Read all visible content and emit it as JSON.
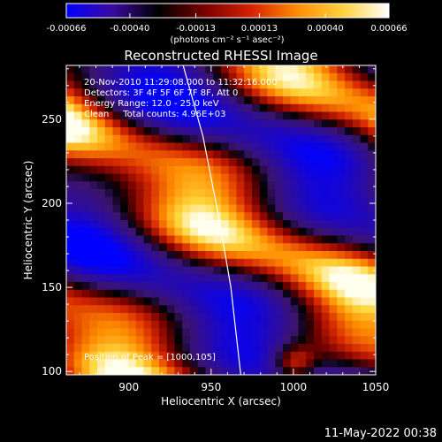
{
  "chart_data": {
    "type": "heatmap",
    "title": "Reconstructed RHESSI Image",
    "xlabel": "Heliocentric X (arcsec)",
    "ylabel": "Heliocentric Y (arcsec)",
    "xlim": [
      862,
      1050
    ],
    "ylim": [
      98,
      282
    ],
    "x_ticks": [
      900,
      950,
      1000,
      1050
    ],
    "y_ticks": [
      100,
      150,
      200,
      250
    ],
    "colorbar": {
      "ticks": [
        "-0.00066",
        "-0.00040",
        "-0.00013",
        "0.00013",
        "0.00040",
        "0.00066"
      ],
      "tick_values": [
        -0.00066,
        -0.0004,
        -0.00013,
        0.00013,
        0.0004,
        0.00066
      ],
      "range": [
        -0.00066,
        0.00066
      ],
      "label": "(photons cm⁻² s⁻¹ asec⁻²)",
      "colors": [
        "#0000ff",
        "#3a0aa0",
        "#000000",
        "#7a0000",
        "#d52000",
        "#ff8c00",
        "#ffd23c",
        "#ffffff"
      ]
    },
    "annotations": [
      "20-Nov-2010 11:29:08.000 to 11:32:16.000",
      "Detectors: 3F 4F 5F 6F 7F 8F, Att 0",
      "Energy Range: 12.0 - 25.0 keV",
      "Clean     Total counts: 4.96E+03"
    ],
    "peak_label": "Position of Peak = [1000,105]",
    "peak_position": [
      1000,
      105
    ],
    "limb_points": [
      [
        933,
        282
      ],
      [
        945,
        240
      ],
      [
        955,
        190
      ],
      [
        962,
        150
      ],
      [
        968,
        98
      ]
    ],
    "timestamp": "11-May-2022 00:38"
  }
}
